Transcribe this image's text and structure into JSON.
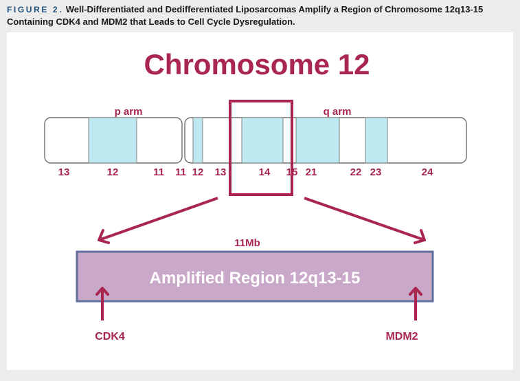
{
  "caption": {
    "label": "FIGURE 2.",
    "text": "Well-Differentiated and Dedifferentiated Liposarcomas Amplify a Region of Chromosome 12q13-15 Containing CDK4 and MDM2 that Leads to Cell Cycle Dysregulation."
  },
  "diagram": {
    "title": "Chromosome 12",
    "p_arm_label": "p arm",
    "q_arm_label": "q arm",
    "band_labels": [
      "13",
      "12",
      "11",
      "11",
      "12",
      "13",
      "14",
      "15",
      "21",
      "22",
      "23",
      "24"
    ],
    "size_label": "11Mb",
    "amplified_region_label": "Amplified Region 12q13-15",
    "genes": {
      "left": "CDK4",
      "right": "MDM2"
    }
  },
  "colors": {
    "accent": "#a8264f",
    "band_fill": "#bfe9f0",
    "amplified_fill": "#c9a8c9",
    "amplified_border": "#5f6f9e",
    "caption_label": "#1f4f7a"
  }
}
